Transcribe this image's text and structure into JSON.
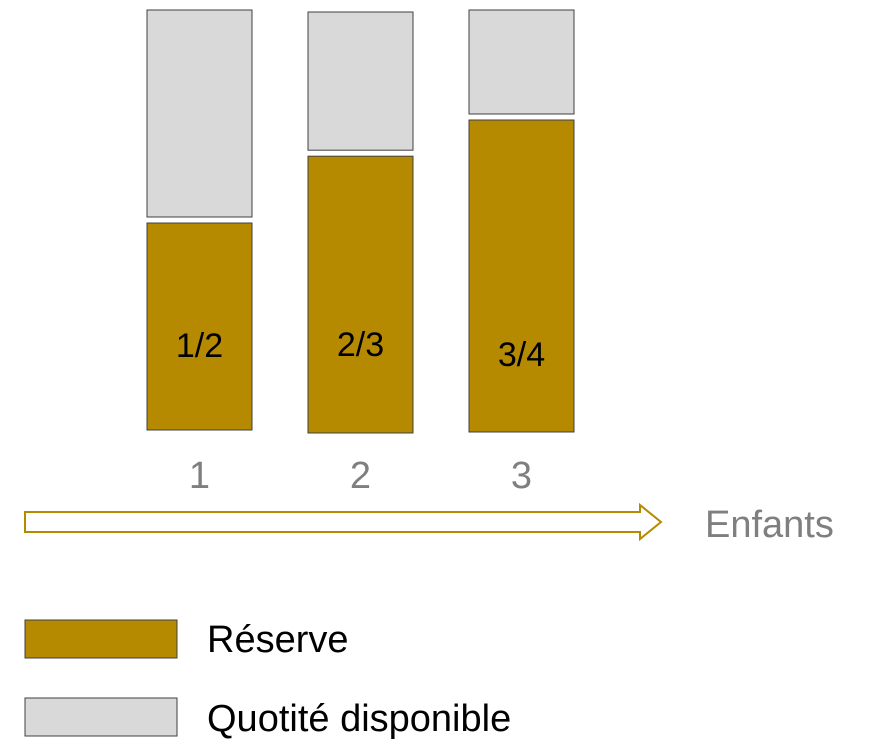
{
  "chart_data": {
    "type": "bar",
    "stacked": true,
    "categories": [
      "1",
      "2",
      "3"
    ],
    "series": [
      {
        "name": "Réserve",
        "values": [
          0.5,
          0.667,
          0.75
        ],
        "labels": [
          "1/2",
          "2/3",
          "3/4"
        ],
        "color": "#b58900"
      },
      {
        "name": "Quotité disponible",
        "values": [
          0.5,
          0.333,
          0.25
        ],
        "color": "#d9d9d9"
      }
    ],
    "xlabel": "Enfants",
    "ylim": [
      0,
      1
    ],
    "grid": false,
    "legend": "bottom-left",
    "colors": {
      "bar_edge": "#404040",
      "arrow": "#b58900",
      "tick_text": "#7f7f7f",
      "text": "#000000"
    }
  }
}
